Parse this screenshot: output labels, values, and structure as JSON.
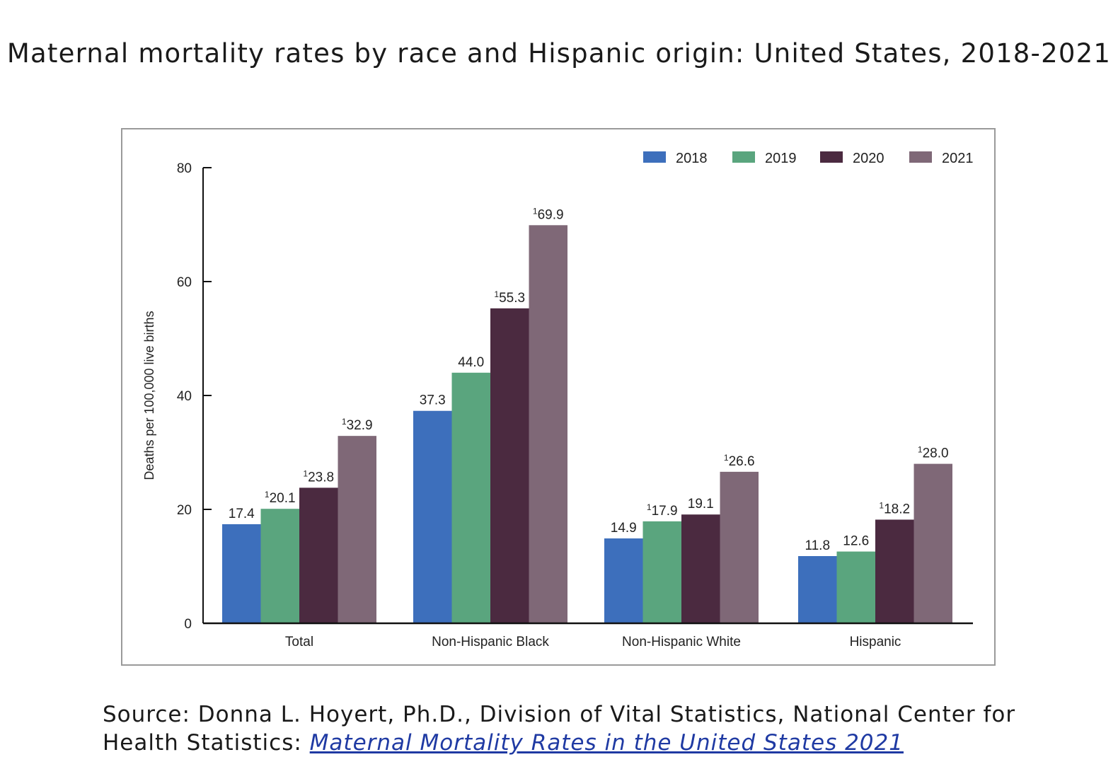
{
  "title": "Maternal mortality rates by race and Hispanic origin: United States, 2018-2021",
  "source": {
    "prefix": "Source: Donna L. Hoyert, Ph.D., Division of Vital Statistics, National Center for Health Statistics: ",
    "link_text": "Maternal Mortality Rates in the United States 2021"
  },
  "chart_data": {
    "type": "bar",
    "title": "",
    "xlabel": "",
    "ylabel": "Deaths per 100,000 live births",
    "ylim": [
      0,
      80
    ],
    "yticks": [
      "0",
      "20",
      "40",
      "60",
      "80"
    ],
    "grid": false,
    "legend_position": "top-right",
    "categories": [
      "Total",
      "Non-Hispanic Black",
      "Non-Hispanic White",
      "Hispanic"
    ],
    "series": [
      {
        "name": "2018",
        "color": "#3d6fbc",
        "values": [
          17.4,
          37.3,
          14.9,
          11.8
        ],
        "labels": [
          "17.4",
          "37.3",
          "14.9",
          "11.8"
        ],
        "footnote": [
          false,
          false,
          false,
          false
        ]
      },
      {
        "name": "2019",
        "color": "#5aa57e",
        "values": [
          20.1,
          44.0,
          17.9,
          12.6
        ],
        "labels": [
          "20.1",
          "44.0",
          "17.9",
          "12.6"
        ],
        "footnote": [
          true,
          false,
          true,
          false
        ]
      },
      {
        "name": "2020",
        "color": "#4b2a40",
        "values": [
          23.8,
          55.3,
          19.1,
          18.2
        ],
        "labels": [
          "23.8",
          "55.3",
          "19.1",
          "18.2"
        ],
        "footnote": [
          true,
          true,
          false,
          true
        ]
      },
      {
        "name": "2021",
        "color": "#7f6877",
        "values": [
          32.9,
          69.9,
          26.6,
          28.0
        ],
        "labels": [
          "32.9",
          "69.9",
          "26.6",
          "28.0"
        ],
        "footnote": [
          true,
          true,
          true,
          true
        ]
      }
    ],
    "footnote_mark": "1"
  }
}
